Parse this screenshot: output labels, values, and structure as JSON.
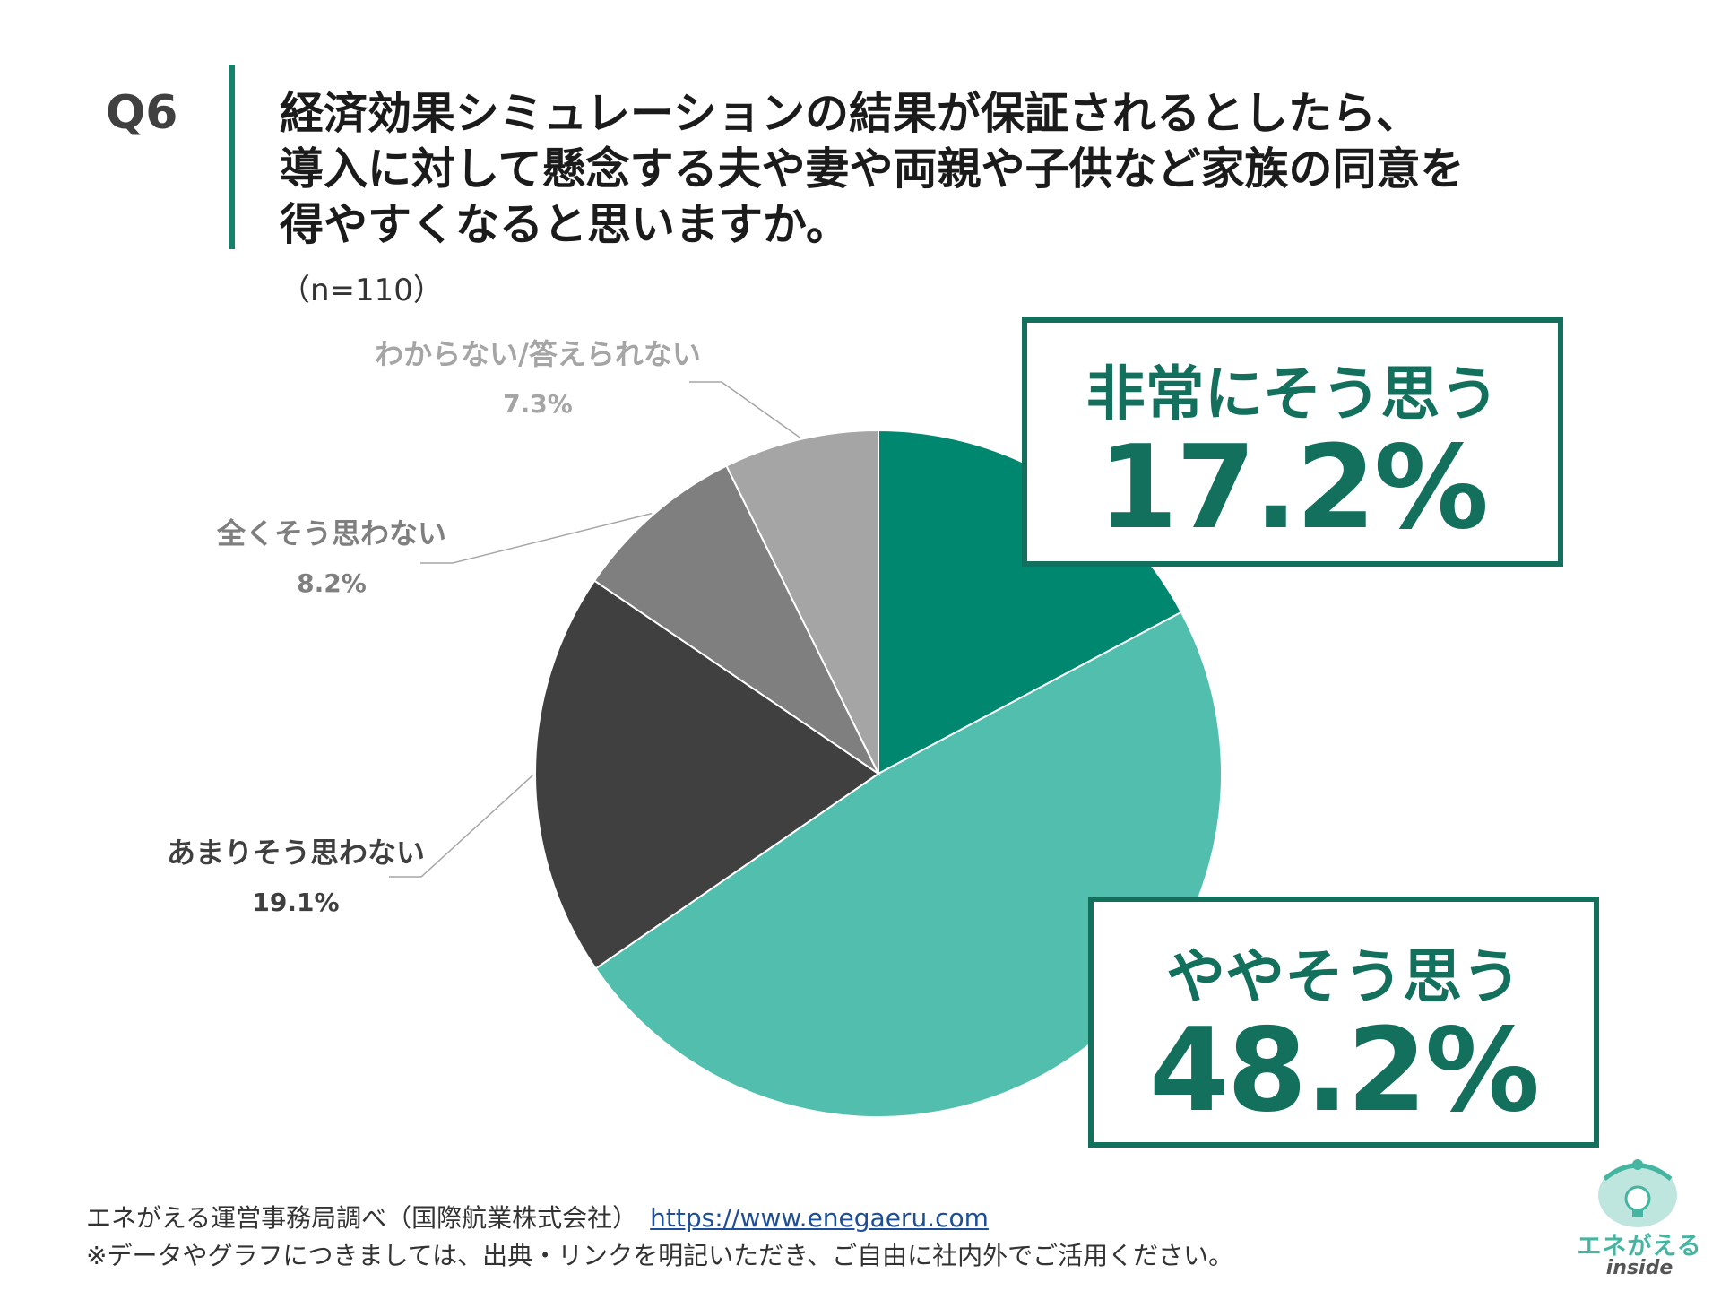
{
  "question": {
    "number": "Q6",
    "lines": [
      "経済効果シミュレーションの結果が保証されるとしたら、",
      "導入に対して懸念する夫や妻や両親や子供など家族の同意を",
      "得やすくなると思いますか。"
    ],
    "sample": "（n=110）"
  },
  "chart_data": {
    "type": "pie",
    "title": "",
    "start_angle_deg": 0,
    "direction": "clockwise",
    "slices": [
      {
        "label": "非常にそう思う",
        "value": 17.2,
        "value_label": "17.2%",
        "color": "#00876f"
      },
      {
        "label": "ややそう思う",
        "value": 48.2,
        "value_label": "48.2%",
        "color": "#52bfae"
      },
      {
        "label": "あまりそう思わない",
        "value": 19.1,
        "value_label": "19.1%",
        "color": "#404040"
      },
      {
        "label": "全くそう思わない",
        "value": 8.2,
        "value_label": "8.2%",
        "color": "#7f7f7f"
      },
      {
        "label": "わからない/答えられない",
        "value": 7.3,
        "value_label": "7.3%",
        "color": "#a5a5a5"
      }
    ],
    "outside_label_colors": [
      "#12705c",
      "#12705c",
      "#3f3f3f",
      "#7f7f7f",
      "#a5a5a5"
    ]
  },
  "footer": {
    "source": "エネがえる運営事務局調べ（国際航業株式会社）",
    "url": "https://www.enegaeru.com",
    "note": "※データやグラフにつきましては、出典・リンクを明記いただき、ご自由に社内外でご活用ください。"
  },
  "logo": {
    "name": "エネがえる",
    "sub": "inside",
    "icon": "lightbulb-icon"
  },
  "colors": {
    "accent": "#12705c",
    "rule": "#12826a"
  }
}
